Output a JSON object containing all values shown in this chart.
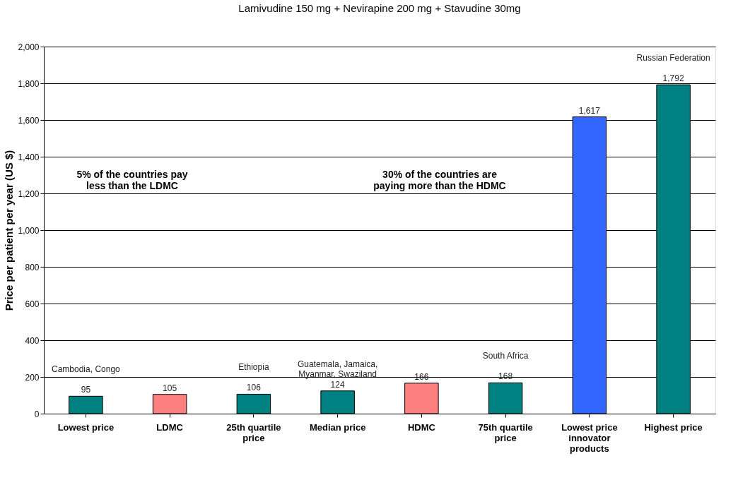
{
  "chart_data": {
    "type": "bar",
    "title": "Lamivudine 150 mg + Nevirapine 200 mg + Stavudine 30mg",
    "ylabel": "Price per patient per year (US $)",
    "categories": [
      "Lowest price",
      "LDMC",
      "25th quartile price",
      "Median price",
      "HDMC",
      "75th quartile price",
      "Lowest price innovator products",
      "Highest price"
    ],
    "values": [
      95,
      105,
      106,
      124,
      166,
      168,
      1617,
      1792
    ],
    "colors": [
      "#008080",
      "#ff8080",
      "#008080",
      "#008080",
      "#ff8080",
      "#008080",
      "#3366ff",
      "#008080"
    ],
    "value_labels": [
      "95",
      "105",
      "106",
      "124",
      "166",
      "168",
      "1,617",
      "1,792"
    ],
    "ylim": [
      0,
      2000
    ],
    "yticks": [
      0,
      200,
      400,
      600,
      800,
      {
        "value": 1000,
        "label": "1,000"
      },
      {
        "value": 1200,
        "label": "1,200"
      },
      {
        "value": 1400,
        "label": "1,400"
      },
      {
        "value": 1600,
        "label": "1,600"
      },
      {
        "value": 1800,
        "label": "1,800"
      },
      {
        "value": 2000,
        "label": "2,000"
      }
    ],
    "grid": "y",
    "annotations": [
      {
        "text": "Cambodia, Congo",
        "x": "Lowest price",
        "y": 95
      },
      {
        "text": "Ethiopia",
        "x": "25th quartile price",
        "y": 106
      },
      {
        "text": "Guatemala, Jamaica, Myanmar, Swaziland",
        "x": "Median price",
        "y": 124
      },
      {
        "text": "South Africa",
        "x": "75th quartile price",
        "y": 168
      },
      {
        "text": "Russian Federation",
        "x": "Highest price",
        "y": 1792
      },
      "5% of the countries pay less than the LDMC",
      "30% of the countries are paying more than the HDMC"
    ]
  }
}
